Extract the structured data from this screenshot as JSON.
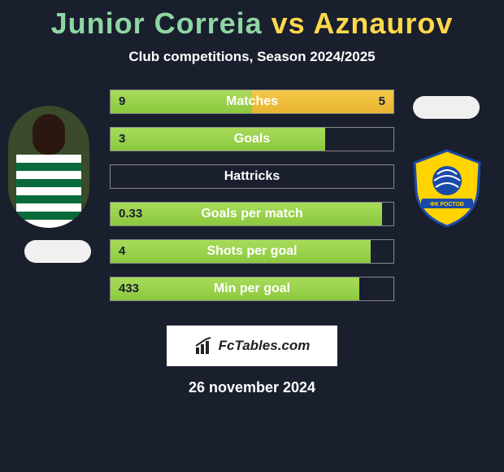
{
  "title": {
    "player1": "Junior Correia",
    "vs": "vs",
    "player2": "Aznaurov"
  },
  "subtitle": "Club competitions, Season 2024/2025",
  "colors": {
    "p1_name": "#8fd6a3",
    "p2_name": "#ffd94a",
    "bar_left_top": "#a8db5a",
    "bar_left_bottom": "#8cc93f",
    "bar_right_top": "#f5c84a",
    "bar_right_bottom": "#e8b530",
    "background": "#1a1f2e",
    "bar_border": "#888888"
  },
  "bar_scale_max": 10,
  "stats": [
    {
      "label": "Matches",
      "left_val": "9",
      "right_val": "5",
      "left_pct": 90,
      "right_pct": 50
    },
    {
      "label": "Goals",
      "left_val": "3",
      "right_val": "0",
      "left_pct": 76,
      "right_pct": 0
    },
    {
      "label": "Hattricks",
      "left_val": "0",
      "right_val": "0",
      "left_pct": 0,
      "right_pct": 0
    },
    {
      "label": "Goals per match",
      "left_val": "0.33",
      "right_val": "",
      "left_pct": 96,
      "right_pct": 0
    },
    {
      "label": "Shots per goal",
      "left_val": "4",
      "right_val": "",
      "left_pct": 92,
      "right_pct": 0
    },
    {
      "label": "Min per goal",
      "left_val": "433",
      "right_val": "",
      "left_pct": 88,
      "right_pct": 0
    }
  ],
  "footer_brand": "FcTables.com",
  "date": "26 november 2024",
  "crest_colors": {
    "shield": "#ffd400",
    "ribbon": "#1a4aa8",
    "ball": "#1a4aa8"
  }
}
